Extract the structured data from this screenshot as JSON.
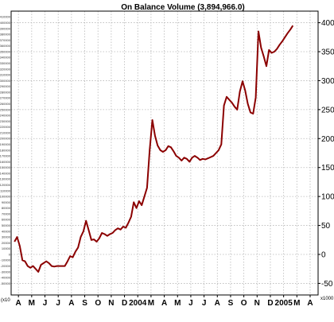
{
  "chart_data": {
    "type": "line",
    "title": "On Balance Volume (3,894,966.0)",
    "xlabel": "",
    "ylabel": "",
    "right_axis_unit": "x1000",
    "left_axis_unit": "(x10",
    "ylim": [
      -70,
      420
    ],
    "right_ticks": [
      -50,
      0,
      50,
      100,
      150,
      200,
      250,
      300,
      350,
      400
    ],
    "right_tick_labels": [
      "-50",
      "0",
      "50",
      "100",
      "150",
      "200",
      "250",
      "300",
      "350",
      "400"
    ],
    "left_ticks_start": -50,
    "left_ticks_end": 415,
    "left_ticks_step": 10,
    "left_tick_scale": 1000,
    "month_labels": [
      "A",
      "M",
      "J",
      "J",
      "A",
      "S",
      "O",
      "N",
      "D",
      "2004",
      "M",
      "A",
      "M",
      "J",
      "J",
      "A",
      "S",
      "O",
      "N",
      "D",
      "2005",
      "M",
      "A"
    ],
    "month_positions": [
      0,
      1,
      2,
      3,
      4,
      5,
      6,
      7,
      8,
      9,
      10,
      11,
      12,
      13,
      14,
      15,
      16,
      17,
      18,
      19,
      20,
      21,
      22
    ],
    "grid": true,
    "line_color": "#8b0000",
    "series": [
      {
        "x": [
          -0.3,
          -0.1,
          0.1,
          0.3,
          0.5,
          0.7,
          0.9,
          1.1,
          1.3,
          1.5,
          1.7,
          1.9,
          2.1,
          2.3,
          2.5,
          2.7,
          2.9,
          3.1,
          3.3,
          3.5,
          3.7,
          3.9,
          4.1,
          4.3,
          4.5,
          4.7,
          4.9,
          5.1,
          5.3,
          5.5,
          5.7,
          5.9,
          6.1,
          6.3,
          6.5,
          6.7,
          6.9,
          7.1,
          7.3,
          7.5,
          7.7,
          7.9,
          8.1,
          8.3,
          8.5,
          8.7,
          8.9,
          9.1,
          9.3,
          9.5,
          9.7,
          9.9,
          10.1,
          10.3,
          10.5,
          10.7,
          10.9,
          11.1,
          11.3,
          11.5,
          11.7,
          11.9,
          12.1,
          12.3,
          12.5,
          12.7,
          12.9,
          13.1,
          13.3,
          13.5,
          13.7,
          13.9,
          14.1,
          14.3,
          14.5,
          14.7,
          14.9,
          15.1,
          15.3,
          15.5,
          15.7,
          15.9,
          16.1,
          16.3,
          16.5,
          16.7,
          16.9,
          17.1,
          17.3,
          17.5,
          17.7,
          17.9,
          18.1,
          18.3,
          18.5,
          18.7,
          18.9,
          19.1,
          19.3,
          19.5,
          19.7,
          19.9,
          20.1,
          20.3,
          20.5,
          20.7
        ],
        "y": [
          22,
          30,
          15,
          -10,
          -12,
          -20,
          -23,
          -20,
          -25,
          -30,
          -18,
          -15,
          -12,
          -15,
          -20,
          -21,
          -20,
          -20,
          -20,
          -20,
          -12,
          -3,
          -5,
          5,
          12,
          30,
          40,
          58,
          42,
          25,
          26,
          22,
          28,
          37,
          35,
          32,
          35,
          37,
          42,
          45,
          43,
          48,
          46,
          55,
          65,
          90,
          80,
          92,
          85,
          100,
          115,
          180,
          232,
          205,
          188,
          180,
          177,
          180,
          187,
          185,
          178,
          170,
          167,
          162,
          167,
          165,
          160,
          167,
          170,
          167,
          163,
          165,
          164,
          166,
          168,
          170,
          175,
          180,
          190,
          257,
          272,
          267,
          262,
          255,
          250,
          281,
          299,
          283,
          260,
          245,
          243,
          271,
          385,
          357,
          342,
          325,
          353,
          348,
          350,
          355,
          362,
          368,
          375,
          382,
          388,
          395
        ]
      }
    ]
  }
}
